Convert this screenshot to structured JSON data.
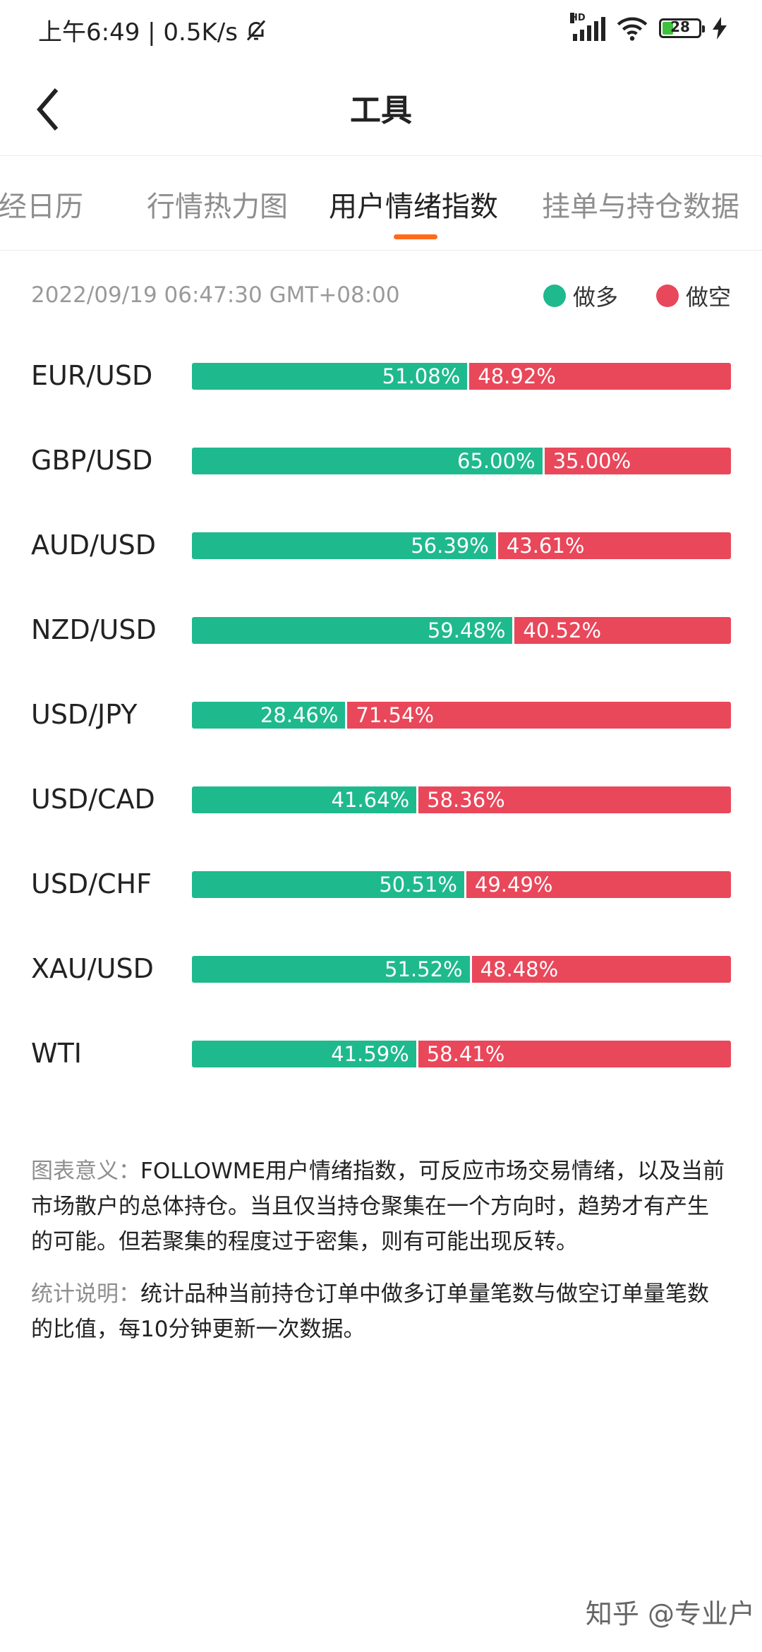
{
  "status_bar": {
    "time": "上午6:49 | 0.5K/s",
    "battery": "28",
    "network": "HD"
  },
  "header": {
    "title": "工具"
  },
  "tabs": [
    {
      "label": "财经日历",
      "active": false
    },
    {
      "label": "行情热力图",
      "active": false
    },
    {
      "label": "用户情绪指数",
      "active": true
    },
    {
      "label": "挂单与持仓数据",
      "active": false
    }
  ],
  "timestamp": "2022/09/19 06:47:30 GMT+08:00",
  "legend": {
    "long_label": "做多",
    "short_label": "做空",
    "long_color": "#1fb98e",
    "short_color": "#e9475a"
  },
  "sentiment": [
    {
      "symbol": "EUR/USD",
      "long": 51.08,
      "short": 48.92,
      "long_text": "51.08%",
      "short_text": "48.92%"
    },
    {
      "symbol": "GBP/USD",
      "long": 65.0,
      "short": 35.0,
      "long_text": "65.00%",
      "short_text": "35.00%"
    },
    {
      "symbol": "AUD/USD",
      "long": 56.39,
      "short": 43.61,
      "long_text": "56.39%",
      "short_text": "43.61%"
    },
    {
      "symbol": "NZD/USD",
      "long": 59.48,
      "short": 40.52,
      "long_text": "59.48%",
      "short_text": "40.52%"
    },
    {
      "symbol": "USD/JPY",
      "long": 28.46,
      "short": 71.54,
      "long_text": "28.46%",
      "short_text": "71.54%"
    },
    {
      "symbol": "USD/CAD",
      "long": 41.64,
      "short": 58.36,
      "long_text": "41.64%",
      "short_text": "58.36%"
    },
    {
      "symbol": "USD/CHF",
      "long": 50.51,
      "short": 49.49,
      "long_text": "50.51%",
      "short_text": "49.49%"
    },
    {
      "symbol": "XAU/USD",
      "long": 51.52,
      "short": 48.48,
      "long_text": "51.52%",
      "short_text": "48.48%"
    },
    {
      "symbol": "WTI",
      "long": 41.59,
      "short": 58.41,
      "long_text": "41.59%",
      "short_text": "58.41%"
    }
  ],
  "notes": {
    "meaning_label": "图表意义：",
    "meaning_text": "FOLLOWME用户情绪指数，可反应市场交易情绪，以及当前市场散户的总体持仓。当且仅当持仓聚集在一个方向时，趋势才有产生的可能。但若聚集的程度过于密集，则有可能出现反转。",
    "stats_label": "统计说明：",
    "stats_text": "统计品种当前持仓订单中做多订单量笔数与做空订单量笔数的比值，每10分钟更新一次数据。"
  },
  "watermark": "知乎 @专业户"
}
